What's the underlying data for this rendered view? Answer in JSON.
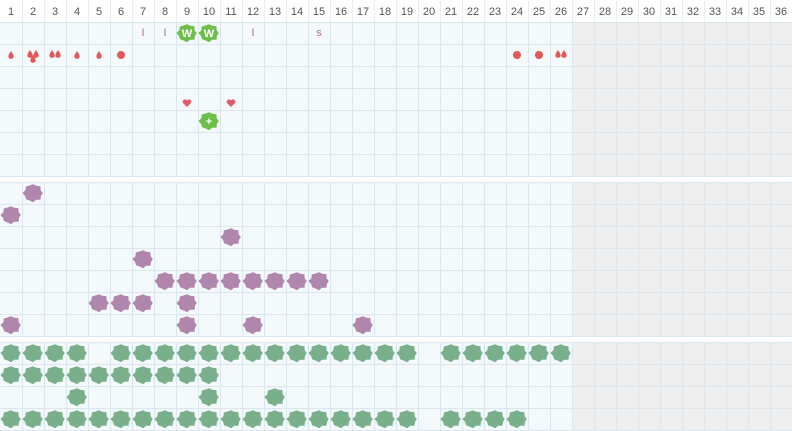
{
  "days": [
    1,
    2,
    3,
    4,
    5,
    6,
    7,
    8,
    9,
    10,
    11,
    12,
    13,
    14,
    15,
    16,
    17,
    18,
    19,
    20,
    21,
    22,
    23,
    24,
    25,
    26,
    27,
    28,
    29,
    30,
    31,
    32,
    33,
    34,
    35,
    36
  ],
  "shaded_from": 27,
  "markers": [
    {
      "day": 7,
      "label": "I"
    },
    {
      "day": 8,
      "label": "I"
    },
    {
      "day": 9,
      "label": "W"
    },
    {
      "day": 10,
      "label": "W"
    },
    {
      "day": 12,
      "label": "I"
    },
    {
      "day": 15,
      "label": "s"
    }
  ],
  "plus_marker": {
    "day": 10,
    "label": "+"
  },
  "drop_days": [
    1,
    4,
    5
  ],
  "double_drop_days": [
    2,
    3,
    26
  ],
  "dot_days": [
    6,
    24,
    25
  ],
  "heart_days": [
    9,
    11
  ],
  "purple_rows": [
    [
      2
    ],
    [
      1
    ],
    [
      11
    ],
    [
      7
    ],
    [
      8,
      9,
      10,
      11,
      12,
      13,
      14,
      15
    ],
    [
      5,
      6,
      7,
      9
    ],
    [
      1,
      9,
      12,
      17
    ]
  ],
  "green_rows": [
    [
      1,
      2,
      3,
      4,
      6,
      7,
      8,
      9,
      10,
      11,
      12,
      13,
      14,
      15,
      16,
      17,
      18,
      19,
      21,
      22,
      23,
      24,
      25,
      26
    ],
    [
      1,
      2,
      3,
      4,
      5,
      6,
      7,
      8,
      9,
      10
    ],
    [
      4,
      10,
      13
    ],
    [
      1,
      2,
      3,
      4,
      5,
      6,
      7,
      8,
      9,
      10,
      11,
      12,
      13,
      14,
      15,
      16,
      17,
      18,
      19,
      21,
      22,
      23,
      24
    ]
  ]
}
